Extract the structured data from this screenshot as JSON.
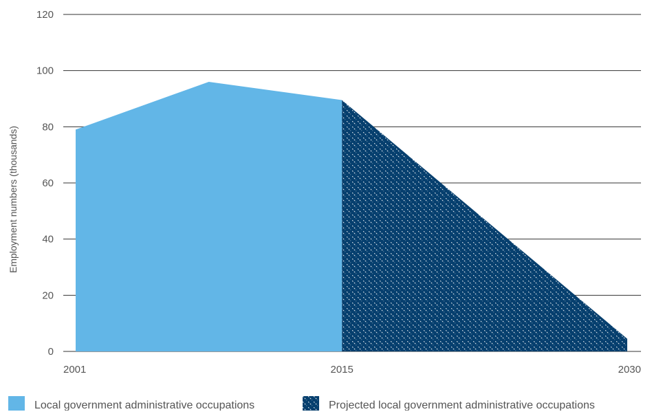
{
  "chart_data": {
    "type": "area",
    "ylabel": "Employment numbers (thousands)",
    "xlabel": "",
    "ylim": [
      0,
      120
    ],
    "yticks": [
      "0",
      "20",
      "40",
      "60",
      "80",
      "100",
      "120"
    ],
    "xticks": [
      "2001",
      "2015",
      "2030"
    ],
    "grid": true,
    "legend_position": "bottom",
    "series": [
      {
        "name": "Local government administrative occupations",
        "style": "solid",
        "color": "#62b6e7",
        "points": [
          {
            "x": 2001,
            "y": 79
          },
          {
            "x": 2008,
            "y": 96
          },
          {
            "x": 2015,
            "y": 89.5
          }
        ]
      },
      {
        "name": "Projected local government administrative occupations",
        "style": "hatched",
        "color": "#063f6e",
        "points": [
          {
            "x": 2015,
            "y": 89.5
          },
          {
            "x": 2030,
            "y": 4.5
          }
        ]
      }
    ]
  }
}
